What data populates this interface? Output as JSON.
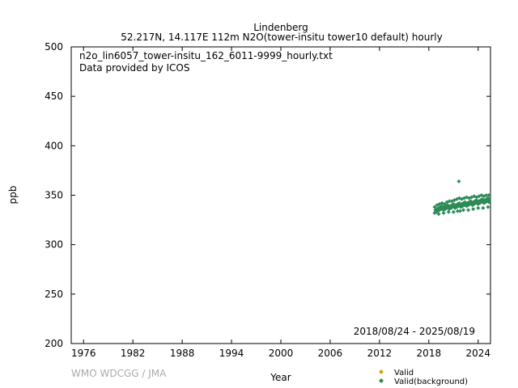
{
  "chart_data": {
    "type": "scatter",
    "title_line1": "Lindenberg",
    "title_line2": "52.217N, 14.117E 112m    N2O(tower-insitu tower10 default) hourly",
    "file_label": "n2o_lin6057_tower-insitu_162_6011-9999_hourly.txt",
    "provider_label": "Data provided by ICOS",
    "date_range": "2018/08/24 - 2025/08/19",
    "xlabel": "Year",
    "ylabel": "ppb",
    "xlim": [
      1974.5,
      2025.5
    ],
    "ylim": [
      200,
      500
    ],
    "xticks": [
      1976,
      1982,
      1988,
      1994,
      2000,
      2006,
      2012,
      2018,
      2024
    ],
    "yticks": [
      200,
      250,
      300,
      350,
      400,
      450,
      500
    ],
    "watermark": "WMO WDCGG / JMA",
    "series": [
      {
        "name": "Valid",
        "color": "#d4a800",
        "marker": "diamond",
        "x": [],
        "y": []
      },
      {
        "name": "Valid(background)",
        "color": "#2e8b57",
        "marker": "diamond",
        "x": [
          2018.7,
          2018.8,
          2018.9,
          2019.0,
          2019.1,
          2019.2,
          2019.3,
          2019.4,
          2019.5,
          2019.6,
          2019.7,
          2019.8,
          2019.9,
          2020.0,
          2020.1,
          2020.2,
          2020.3,
          2020.4,
          2020.5,
          2020.6,
          2020.7,
          2020.8,
          2020.9,
          2021.0,
          2021.1,
          2021.2,
          2021.3,
          2021.4,
          2021.5,
          2021.6,
          2021.7,
          2021.8,
          2021.9,
          2022.0,
          2022.1,
          2022.2,
          2022.3,
          2022.4,
          2022.5,
          2022.6,
          2022.7,
          2022.8,
          2022.9,
          2023.0,
          2023.1,
          2023.2,
          2023.3,
          2023.4,
          2023.5,
          2023.6,
          2023.7,
          2023.8,
          2023.9,
          2024.0,
          2024.1,
          2024.2,
          2024.3,
          2024.4,
          2024.5,
          2024.6,
          2024.7,
          2024.8,
          2024.9,
          2025.0,
          2025.1,
          2025.2,
          2025.3,
          2025.4,
          2025.5,
          2018.7,
          2019.0,
          2019.3,
          2019.6,
          2019.9,
          2020.2,
          2020.5,
          2020.8,
          2021.1,
          2021.4,
          2021.7,
          2022.0,
          2022.3,
          2022.6,
          2022.9,
          2023.2,
          2023.5,
          2023.8,
          2024.1,
          2024.4,
          2024.7,
          2025.0,
          2025.3,
          2019.2,
          2019.8,
          2020.4,
          2021.0,
          2021.5,
          2021.8,
          2022.2,
          2022.8,
          2023.4,
          2024.0,
          2024.6,
          2025.2,
          2021.65
        ],
        "y": [
          332,
          335,
          333,
          336,
          334,
          337,
          335,
          338,
          336,
          339,
          337,
          335,
          338,
          336,
          339,
          337,
          340,
          338,
          336,
          339,
          337,
          340,
          338,
          341,
          339,
          337,
          340,
          338,
          341,
          339,
          342,
          340,
          338,
          341,
          339,
          342,
          340,
          343,
          341,
          339,
          342,
          340,
          343,
          341,
          344,
          342,
          340,
          343,
          341,
          344,
          342,
          345,
          343,
          341,
          344,
          342,
          345,
          343,
          346,
          344,
          342,
          345,
          343,
          346,
          344,
          347,
          345,
          343,
          346,
          338,
          340,
          341,
          342,
          341,
          343,
          344,
          344,
          345,
          346,
          347,
          346,
          347,
          348,
          347,
          348,
          349,
          348,
          349,
          350,
          349,
          350,
          350,
          331,
          332,
          333,
          333,
          334,
          334,
          335,
          335,
          336,
          337,
          337,
          338,
          364
        ]
      }
    ],
    "legend": {
      "items": [
        {
          "label": "Valid",
          "color": "#d4a800"
        },
        {
          "label": "Valid(background)",
          "color": "#2e8b57"
        }
      ]
    }
  }
}
